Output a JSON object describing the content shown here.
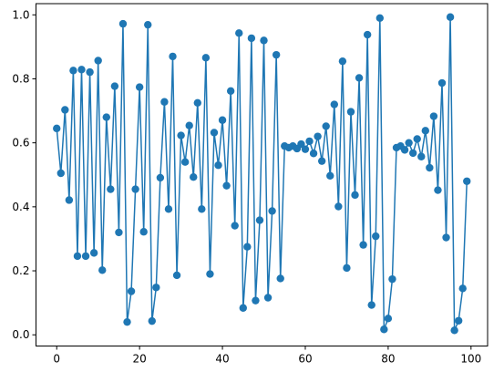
{
  "chart_data": {
    "type": "line",
    "marker": "circle",
    "color": "#1f77b4",
    "grid": false,
    "xlim": [
      -5,
      104
    ],
    "ylim": [
      -0.035,
      1.035
    ],
    "xticks": [
      0,
      20,
      40,
      60,
      80,
      100
    ],
    "xtick_labels": [
      "0",
      "20",
      "40",
      "60",
      "80",
      "100"
    ],
    "yticks": [
      0.0,
      0.2,
      0.4,
      0.6,
      0.8,
      1.0
    ],
    "ytick_labels": [
      "0.0",
      "0.2",
      "0.4",
      "0.6",
      "0.8",
      "1.0"
    ],
    "x": [
      0,
      1,
      2,
      3,
      4,
      5,
      6,
      7,
      8,
      9,
      10,
      11,
      12,
      13,
      14,
      15,
      16,
      17,
      18,
      19,
      20,
      21,
      22,
      23,
      24,
      25,
      26,
      27,
      28,
      29,
      30,
      31,
      32,
      33,
      34,
      35,
      36,
      37,
      38,
      39,
      40,
      41,
      42,
      43,
      44,
      45,
      46,
      47,
      48,
      49,
      50,
      51,
      52,
      53,
      54,
      55,
      56,
      57,
      58,
      59,
      60,
      61,
      62,
      63,
      64,
      65,
      66,
      67,
      68,
      69,
      70,
      71,
      72,
      73,
      74,
      75,
      76,
      77,
      78,
      79,
      80,
      81,
      82,
      83,
      84,
      85,
      86,
      87,
      88,
      89,
      90,
      91,
      92,
      93,
      94,
      95,
      96,
      97,
      98,
      99
    ],
    "y": [
      0.645,
      0.505,
      0.703,
      0.421,
      0.826,
      0.246,
      0.829,
      0.246,
      0.821,
      0.256,
      0.857,
      0.202,
      0.68,
      0.455,
      0.777,
      0.32,
      0.972,
      0.04,
      0.136,
      0.455,
      0.774,
      0.322,
      0.969,
      0.043,
      0.148,
      0.491,
      0.728,
      0.393,
      0.87,
      0.186,
      0.623,
      0.54,
      0.654,
      0.493,
      0.725,
      0.393,
      0.866,
      0.19,
      0.632,
      0.53,
      0.671,
      0.466,
      0.762,
      0.341,
      0.943,
      0.084,
      0.275,
      0.927,
      0.107,
      0.358,
      0.92,
      0.116,
      0.387,
      0.875,
      0.176,
      0.59,
      0.585,
      0.59,
      0.582,
      0.596,
      0.58,
      0.605,
      0.567,
      0.62,
      0.543,
      0.652,
      0.497,
      0.72,
      0.401,
      0.855,
      0.209,
      0.697,
      0.437,
      0.803,
      0.281,
      0.938,
      0.093,
      0.308,
      0.99,
      0.017,
      0.051,
      0.174,
      0.585,
      0.59,
      0.578,
      0.6,
      0.568,
      0.612,
      0.557,
      0.638,
      0.522,
      0.683,
      0.452,
      0.787,
      0.304,
      0.993,
      0.014,
      0.044,
      0.145,
      0.48
    ]
  }
}
